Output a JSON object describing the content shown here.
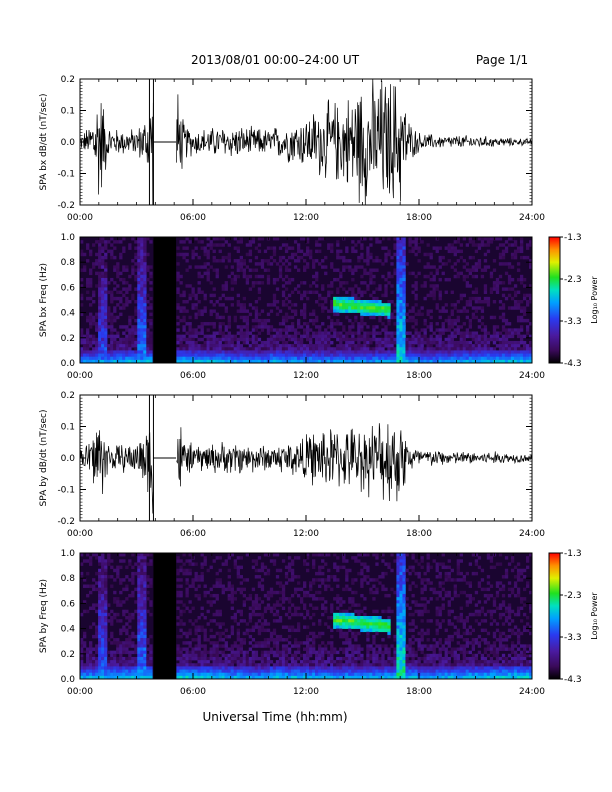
{
  "header": {
    "title": "2013/08/01   00:00–24:00 UT",
    "page": "Page 1/1"
  },
  "footer": {
    "xlabel": "Universal Time (hh:mm)"
  },
  "colorbar": {
    "label": "Log₁₀ Power",
    "ticks": [
      "-1.3",
      "-2.3",
      "-3.3",
      "-4.3"
    ],
    "range": [
      -4.3,
      -1.3
    ],
    "colormap": "rainbow (black/purple low → red high)"
  },
  "chart_data": [
    {
      "type": "line",
      "title": "",
      "ylabel": "SPA bx dB/dt (nT/sec)",
      "xlabel": "",
      "x_ticks": [
        "00:00",
        "06:00",
        "12:00",
        "18:00",
        "24:00"
      ],
      "y_ticks": [
        "0.2",
        "0.1",
        "0.0",
        "-0.1",
        "-0.2"
      ],
      "xlim": [
        0,
        24
      ],
      "ylim": [
        -0.2,
        0.2
      ],
      "data_gaps_hours": [
        [
          3.9,
          5.1
        ]
      ],
      "envelope": {
        "x_hours": [
          0.0,
          0.5,
          1.0,
          1.5,
          2.0,
          3.0,
          3.5,
          3.9,
          5.1,
          5.5,
          6.0,
          8.0,
          10.0,
          11.0,
          12.0,
          13.0,
          14.0,
          15.0,
          16.0,
          16.5,
          17.0,
          17.5,
          18.0,
          19.0,
          20.0,
          21.0,
          22.0,
          23.0,
          24.0
        ],
        "amplitude": [
          0.02,
          0.05,
          0.2,
          0.05,
          0.04,
          0.04,
          0.08,
          0.2,
          0.2,
          0.06,
          0.04,
          0.05,
          0.04,
          0.06,
          0.08,
          0.12,
          0.13,
          0.2,
          0.2,
          0.2,
          0.2,
          0.06,
          0.03,
          0.02,
          0.02,
          0.02,
          0.015,
          0.012,
          0.01
        ]
      }
    },
    {
      "type": "heatmap",
      "title": "",
      "ylabel": "SPA bx Freq (Hz)",
      "x_ticks": [
        "00:00",
        "06:00",
        "12:00",
        "18:00",
        "24:00"
      ],
      "y_ticks": [
        "1.0",
        "0.8",
        "0.6",
        "0.4",
        "0.2",
        "0.0"
      ],
      "xlim": [
        0,
        24
      ],
      "ylim": [
        0.0,
        1.0
      ],
      "data_gaps_hours": [
        [
          3.9,
          5.1
        ]
      ],
      "features": [
        {
          "kind": "band",
          "x_hours": [
            13.5,
            16.5
          ],
          "freq_hz": [
            0.4,
            0.55
          ],
          "log_power": -2.3
        },
        {
          "kind": "vertical_burst",
          "x_hours": 1.2,
          "log_power": -3.2
        },
        {
          "kind": "vertical_burst",
          "x_hours": 3.3,
          "log_power": -3.0
        },
        {
          "kind": "vertical_burst",
          "x_hours": 17.0,
          "log_power": -2.6
        },
        {
          "kind": "low_freq_enhancement",
          "x_hours": [
            0,
            24
          ],
          "freq_hz": [
            0.0,
            0.1
          ],
          "log_power": -2.8
        }
      ]
    },
    {
      "type": "line",
      "title": "",
      "ylabel": "SPA by dB/dt (nT/sec)",
      "xlabel": "",
      "x_ticks": [
        "00:00",
        "06:00",
        "12:00",
        "18:00",
        "24:00"
      ],
      "y_ticks": [
        "0.2",
        "0.1",
        "0.0",
        "-0.1",
        "-0.2"
      ],
      "xlim": [
        0,
        24
      ],
      "ylim": [
        -0.2,
        0.2
      ],
      "data_gaps_hours": [
        [
          3.9,
          5.1
        ]
      ],
      "envelope": {
        "x_hours": [
          0.0,
          0.5,
          1.0,
          1.5,
          2.0,
          3.0,
          3.5,
          3.9,
          5.1,
          5.5,
          6.0,
          8.0,
          10.0,
          11.0,
          12.0,
          13.0,
          14.0,
          15.0,
          16.0,
          16.5,
          17.0,
          17.5,
          18.0,
          19.0,
          20.0,
          21.0,
          22.0,
          23.0,
          24.0
        ],
        "amplitude": [
          0.03,
          0.06,
          0.15,
          0.05,
          0.04,
          0.05,
          0.1,
          0.2,
          0.2,
          0.06,
          0.04,
          0.05,
          0.04,
          0.05,
          0.07,
          0.1,
          0.09,
          0.1,
          0.12,
          0.15,
          0.13,
          0.05,
          0.03,
          0.025,
          0.02,
          0.02,
          0.02,
          0.015,
          0.012
        ]
      }
    },
    {
      "type": "heatmap",
      "title": "",
      "ylabel": "SPA by Freq (Hz)",
      "x_ticks": [
        "00:00",
        "06:00",
        "12:00",
        "18:00",
        "24:00"
      ],
      "y_ticks": [
        "1.0",
        "0.8",
        "0.6",
        "0.4",
        "0.2",
        "0.0"
      ],
      "xlim": [
        0,
        24
      ],
      "ylim": [
        0.0,
        1.0
      ],
      "data_gaps_hours": [
        [
          3.9,
          5.1
        ]
      ],
      "features": [
        {
          "kind": "band",
          "x_hours": [
            13.5,
            16.5
          ],
          "freq_hz": [
            0.4,
            0.55
          ],
          "log_power": -2.3
        },
        {
          "kind": "vertical_burst",
          "x_hours": 1.2,
          "log_power": -3.1
        },
        {
          "kind": "vertical_burst",
          "x_hours": 3.3,
          "log_power": -3.0
        },
        {
          "kind": "vertical_burst",
          "x_hours": 17.0,
          "log_power": -2.5
        },
        {
          "kind": "low_freq_enhancement",
          "x_hours": [
            0,
            24
          ],
          "freq_hz": [
            0.0,
            0.1
          ],
          "log_power": -2.7
        }
      ]
    }
  ]
}
